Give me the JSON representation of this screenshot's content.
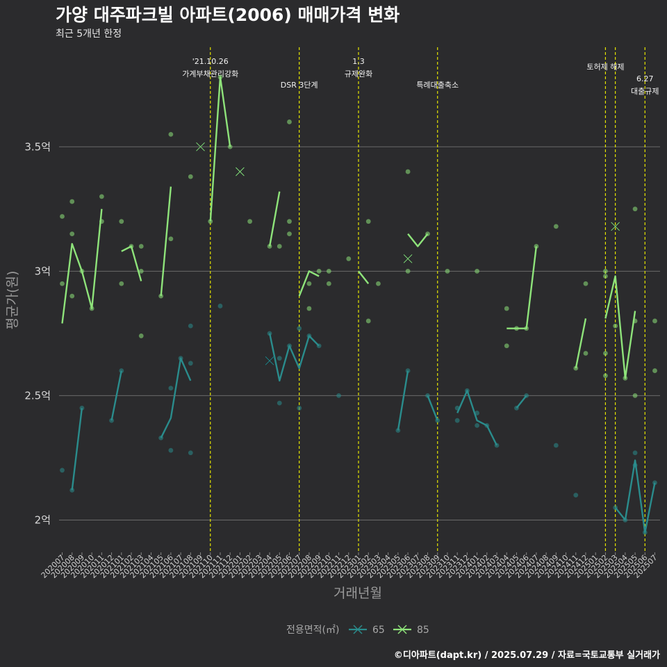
{
  "chart_data": {
    "type": "line",
    "title": "가양 대주파크빌 아파트(2006) 매매가격 변화",
    "subtitle": "최근 5개년 한정",
    "xlabel": "거래년월",
    "ylabel": "평균가(원)",
    "caption": "©디아파트(dapt.kr) / 2025.07.29 / 자료=국토교통부 실거래가",
    "legend": {
      "title": "전용면적(㎡)",
      "position": "bottom"
    },
    "ylim": [
      1.87,
      3.9
    ],
    "yticks": [
      {
        "value": 2.0,
        "label": "2억"
      },
      {
        "value": 2.5,
        "label": "2.5억"
      },
      {
        "value": 3.0,
        "label": "3억"
      },
      {
        "value": 3.5,
        "label": "3.5억"
      }
    ],
    "categories": [
      "202007",
      "202008",
      "202009",
      "202010",
      "202011",
      "202012",
      "202101",
      "202102",
      "202103",
      "202104",
      "202105",
      "202106",
      "202107",
      "202108",
      "202109",
      "202110",
      "202111",
      "202112",
      "202201",
      "202202",
      "202203",
      "202204",
      "202205",
      "202206",
      "202207",
      "202208",
      "202209",
      "202210",
      "202211",
      "202212",
      "202301",
      "202302",
      "202303",
      "202304",
      "202305",
      "202306",
      "202307",
      "202308",
      "202309",
      "202310",
      "202311",
      "202312",
      "202401",
      "202402",
      "202403",
      "202404",
      "202405",
      "202406",
      "202407",
      "202408",
      "202409",
      "202410",
      "202411",
      "202412",
      "202501",
      "202502",
      "202503",
      "202504",
      "202505",
      "202506",
      "202507"
    ],
    "series": [
      {
        "name": "65",
        "color": "#2a8c8c",
        "line": [
          null,
          2.12,
          2.45,
          null,
          null,
          2.4,
          2.6,
          null,
          null,
          null,
          2.33,
          2.41,
          2.65,
          2.56,
          null,
          null,
          null,
          null,
          null,
          null,
          null,
          2.75,
          2.56,
          2.7,
          2.61,
          2.74,
          2.7,
          null,
          2.5,
          null,
          null,
          null,
          null,
          null,
          2.36,
          2.6,
          null,
          2.5,
          2.4,
          null,
          2.43,
          2.52,
          2.4,
          2.38,
          2.3,
          null,
          2.45,
          2.5,
          null,
          null,
          null,
          null,
          null,
          null,
          null,
          null,
          2.05,
          2.0,
          2.24,
          1.95,
          2.15
        ],
        "points": [
          {
            "x": "202007",
            "y": 2.2
          },
          {
            "x": "202008",
            "y": 2.12
          },
          {
            "x": "202009",
            "y": 2.45
          },
          {
            "x": "202012",
            "y": 2.4
          },
          {
            "x": "202101",
            "y": 2.6
          },
          {
            "x": "202105",
            "y": 2.33
          },
          {
            "x": "202106",
            "y": 2.28
          },
          {
            "x": "202106",
            "y": 2.53
          },
          {
            "x": "202107",
            "y": 2.65
          },
          {
            "x": "202108",
            "y": 2.78
          },
          {
            "x": "202108",
            "y": 2.63
          },
          {
            "x": "202108",
            "y": 2.27
          },
          {
            "x": "202111",
            "y": 2.86
          },
          {
            "x": "202204",
            "y": 2.75
          },
          {
            "x": "202205",
            "y": 2.65
          },
          {
            "x": "202205",
            "y": 2.47
          },
          {
            "x": "202206",
            "y": 2.7
          },
          {
            "x": "202207",
            "y": 2.77
          },
          {
            "x": "202207",
            "y": 2.45
          },
          {
            "x": "202208",
            "y": 2.74
          },
          {
            "x": "202209",
            "y": 2.7
          },
          {
            "x": "202211",
            "y": 2.5
          },
          {
            "x": "202305",
            "y": 2.36
          },
          {
            "x": "202306",
            "y": 2.6
          },
          {
            "x": "202308",
            "y": 2.5
          },
          {
            "x": "202309",
            "y": 2.4
          },
          {
            "x": "202311",
            "y": 2.45
          },
          {
            "x": "202311",
            "y": 2.4
          },
          {
            "x": "202312",
            "y": 2.52
          },
          {
            "x": "202401",
            "y": 2.43
          },
          {
            "x": "202401",
            "y": 2.38
          },
          {
            "x": "202402",
            "y": 2.38
          },
          {
            "x": "202403",
            "y": 2.3
          },
          {
            "x": "202405",
            "y": 2.45
          },
          {
            "x": "202406",
            "y": 2.5
          },
          {
            "x": "202409",
            "y": 2.3
          },
          {
            "x": "202411",
            "y": 2.1
          },
          {
            "x": "202503",
            "y": 2.05
          },
          {
            "x": "202504",
            "y": 2.0
          },
          {
            "x": "202505",
            "y": 2.27
          },
          {
            "x": "202505",
            "y": 2.22
          },
          {
            "x": "202506",
            "y": 1.95
          },
          {
            "x": "202507",
            "y": 2.15
          }
        ],
        "crosses": [
          {
            "x": "202204",
            "y": 2.64
          }
        ]
      },
      {
        "name": "85",
        "color": "#8ee37a",
        "line": [
          2.79,
          3.11,
          3.0,
          2.85,
          3.25,
          null,
          3.08,
          3.1,
          2.96,
          null,
          2.9,
          3.34,
          null,
          3.38,
          null,
          3.2,
          3.78,
          3.5,
          null,
          3.2,
          null,
          3.1,
          3.32,
          null,
          2.9,
          3.0,
          2.98,
          null,
          3.05,
          null,
          3.0,
          2.95,
          null,
          null,
          null,
          3.15,
          3.1,
          3.15,
          null,
          3.0,
          null,
          null,
          3.0,
          null,
          null,
          2.77,
          2.77,
          2.77,
          3.1,
          null,
          3.18,
          null,
          2.61,
          2.81,
          null,
          2.81,
          2.98,
          2.57,
          2.84,
          null,
          2.7
        ],
        "points": [
          {
            "x": "202007",
            "y": 3.22
          },
          {
            "x": "202007",
            "y": 2.95
          },
          {
            "x": "202008",
            "y": 3.28
          },
          {
            "x": "202008",
            "y": 3.15
          },
          {
            "x": "202008",
            "y": 2.9
          },
          {
            "x": "202009",
            "y": 3.0
          },
          {
            "x": "202010",
            "y": 2.85
          },
          {
            "x": "202011",
            "y": 3.3
          },
          {
            "x": "202011",
            "y": 3.2
          },
          {
            "x": "202101",
            "y": 3.2
          },
          {
            "x": "202101",
            "y": 2.95
          },
          {
            "x": "202102",
            "y": 3.1
          },
          {
            "x": "202103",
            "y": 3.1
          },
          {
            "x": "202103",
            "y": 3.0
          },
          {
            "x": "202103",
            "y": 2.74
          },
          {
            "x": "202105",
            "y": 2.9
          },
          {
            "x": "202106",
            "y": 3.55
          },
          {
            "x": "202106",
            "y": 3.13
          },
          {
            "x": "202108",
            "y": 3.38
          },
          {
            "x": "202110",
            "y": 3.2
          },
          {
            "x": "202111",
            "y": 3.78
          },
          {
            "x": "202112",
            "y": 3.5
          },
          {
            "x": "202202",
            "y": 3.2
          },
          {
            "x": "202204",
            "y": 3.1
          },
          {
            "x": "202205",
            "y": 3.1
          },
          {
            "x": "202206",
            "y": 3.6
          },
          {
            "x": "202206",
            "y": 3.2
          },
          {
            "x": "202206",
            "y": 3.15
          },
          {
            "x": "202208",
            "y": 2.95
          },
          {
            "x": "202208",
            "y": 2.85
          },
          {
            "x": "202209",
            "y": 3.0
          },
          {
            "x": "202210",
            "y": 3.0
          },
          {
            "x": "202210",
            "y": 2.95
          },
          {
            "x": "202212",
            "y": 3.05
          },
          {
            "x": "202302",
            "y": 3.2
          },
          {
            "x": "202302",
            "y": 2.8
          },
          {
            "x": "202303",
            "y": 2.95
          },
          {
            "x": "202306",
            "y": 3.4
          },
          {
            "x": "202306",
            "y": 3.0
          },
          {
            "x": "202308",
            "y": 3.15
          },
          {
            "x": "202310",
            "y": 3.0
          },
          {
            "x": "202401",
            "y": 3.0
          },
          {
            "x": "202404",
            "y": 2.85
          },
          {
            "x": "202404",
            "y": 2.7
          },
          {
            "x": "202405",
            "y": 2.77
          },
          {
            "x": "202406",
            "y": 2.77
          },
          {
            "x": "202407",
            "y": 3.1
          },
          {
            "x": "202409",
            "y": 3.18
          },
          {
            "x": "202411",
            "y": 2.61
          },
          {
            "x": "202412",
            "y": 2.95
          },
          {
            "x": "202412",
            "y": 2.67
          },
          {
            "x": "202502",
            "y": 3.0
          },
          {
            "x": "202502",
            "y": 2.98
          },
          {
            "x": "202502",
            "y": 2.67
          },
          {
            "x": "202502",
            "y": 2.58
          },
          {
            "x": "202503",
            "y": 2.78
          },
          {
            "x": "202504",
            "y": 2.57
          },
          {
            "x": "202505",
            "y": 3.25
          },
          {
            "x": "202505",
            "y": 2.8
          },
          {
            "x": "202505",
            "y": 2.5
          },
          {
            "x": "202507",
            "y": 2.8
          },
          {
            "x": "202507",
            "y": 2.6
          }
        ],
        "crosses": [
          {
            "x": "202109",
            "y": 3.5
          },
          {
            "x": "202201",
            "y": 3.4
          },
          {
            "x": "202306",
            "y": 3.05
          },
          {
            "x": "202503",
            "y": 3.18
          }
        ]
      }
    ],
    "annotations": [
      {
        "x": "202110",
        "lines": [
          "'21.10.26",
          "가계부채관리강화"
        ],
        "level": 0
      },
      {
        "x": "202207",
        "lines": [
          "DSR 3단계"
        ],
        "level": 2
      },
      {
        "x": "202301",
        "lines": [
          "1.3",
          "규제완화"
        ],
        "level": 0
      },
      {
        "x": "202309",
        "lines": [
          "특례대출축소"
        ],
        "level": 2
      },
      {
        "x": "202502",
        "lines": [
          "토허제 해제"
        ],
        "level": 1
      },
      {
        "x": "202503",
        "lines": [],
        "level": 1
      },
      {
        "x": "202506",
        "lines": [
          "6.27",
          "대출규제"
        ],
        "level": 3
      }
    ],
    "grid": true,
    "vline_color": "#e6e600"
  }
}
